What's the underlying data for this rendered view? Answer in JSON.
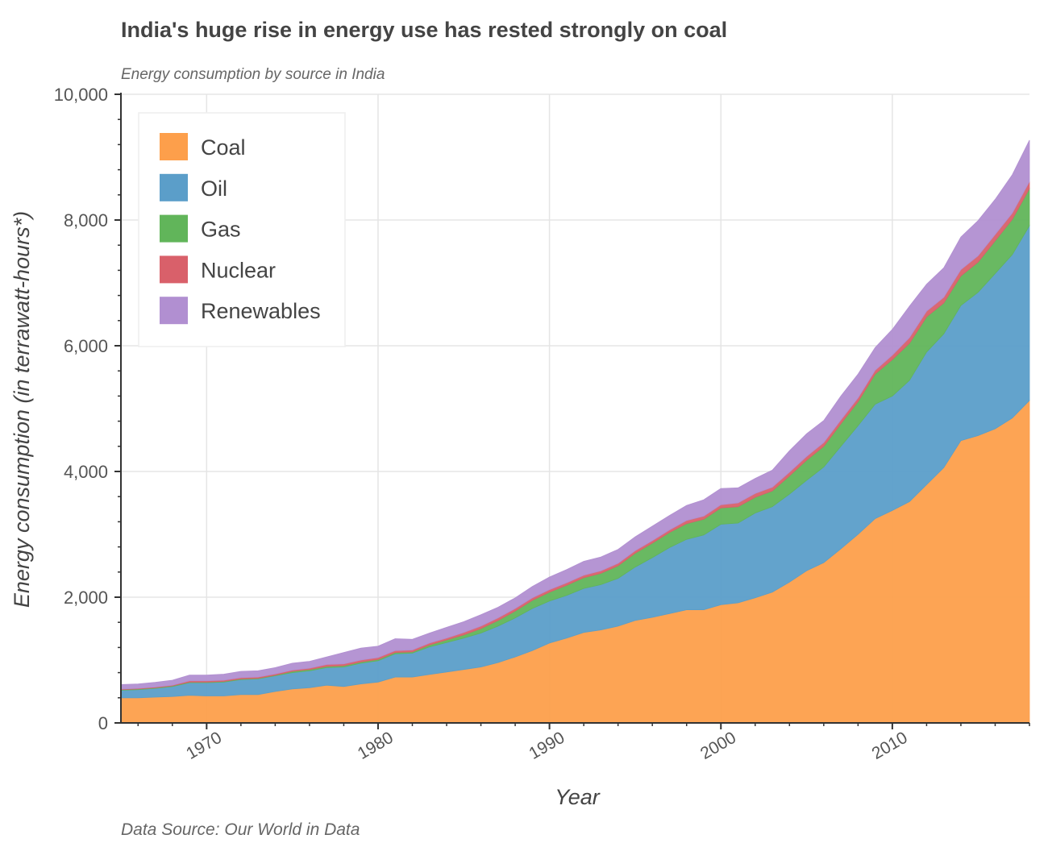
{
  "chart_data": {
    "type": "area",
    "stacked": true,
    "title": "India's huge rise in energy use has rested strongly on coal",
    "subtitle": "Energy consumption by source in India",
    "xlabel": "Year",
    "ylabel": "Energy consumption (in terrawatt-hours*)",
    "source": "Data Source: Our World in Data",
    "xlim": [
      1965,
      2018
    ],
    "ylim": [
      0,
      10000
    ],
    "x_ticks": [
      1970,
      1980,
      1990,
      2000,
      2010
    ],
    "y_ticks": [
      {
        "value": 0,
        "label": "0"
      },
      {
        "value": 2000,
        "label": "2,000"
      },
      {
        "value": 4000,
        "label": "4,000"
      },
      {
        "value": 6000,
        "label": "6,000"
      },
      {
        "value": 8000,
        "label": "8,000"
      },
      {
        "value": 10000,
        "label": "10,000"
      }
    ],
    "grid": true,
    "legend_position": "top-left",
    "x": [
      1965,
      1966,
      1967,
      1968,
      1969,
      1970,
      1971,
      1972,
      1973,
      1974,
      1975,
      1976,
      1977,
      1978,
      1979,
      1980,
      1981,
      1982,
      1983,
      1984,
      1985,
      1986,
      1987,
      1988,
      1989,
      1990,
      1991,
      1992,
      1993,
      1994,
      1995,
      1996,
      1997,
      1998,
      1999,
      2000,
      2001,
      2002,
      2003,
      2004,
      2005,
      2006,
      2007,
      2008,
      2009,
      2010,
      2011,
      2012,
      2013,
      2014,
      2015,
      2016,
      2017,
      2018
    ],
    "series": [
      {
        "name": "Coal",
        "color": "#fd9f4b",
        "values": [
          400,
          400,
          410,
          420,
          440,
          430,
          430,
          450,
          450,
          500,
          540,
          560,
          600,
          580,
          620,
          650,
          730,
          730,
          770,
          810,
          850,
          890,
          960,
          1050,
          1150,
          1270,
          1350,
          1440,
          1480,
          1540,
          1630,
          1680,
          1740,
          1800,
          1800,
          1880,
          1910,
          1990,
          2080,
          2240,
          2420,
          2550,
          2770,
          3000,
          3250,
          3380,
          3520,
          3790,
          4060,
          4490,
          4570,
          4680,
          4850,
          5130
        ]
      },
      {
        "name": "Oil",
        "color": "#5b9ec9",
        "values": [
          120,
          130,
          140,
          160,
          200,
          210,
          220,
          240,
          250,
          250,
          260,
          270,
          280,
          310,
          330,
          340,
          370,
          380,
          440,
          470,
          500,
          540,
          580,
          620,
          670,
          670,
          680,
          700,
          720,
          760,
          850,
          950,
          1050,
          1120,
          1190,
          1280,
          1270,
          1350,
          1360,
          1400,
          1440,
          1520,
          1630,
          1730,
          1820,
          1820,
          1930,
          2110,
          2130,
          2150,
          2280,
          2470,
          2600,
          2780
        ]
      },
      {
        "name": "Gas",
        "color": "#61b55a",
        "values": [
          10,
          10,
          10,
          10,
          10,
          10,
          10,
          10,
          10,
          10,
          20,
          20,
          20,
          20,
          20,
          20,
          20,
          20,
          30,
          40,
          50,
          70,
          90,
          110,
          130,
          140,
          160,
          170,
          180,
          200,
          220,
          230,
          240,
          250,
          250,
          260,
          260,
          250,
          250,
          290,
          320,
          330,
          360,
          380,
          480,
          580,
          590,
          560,
          490,
          470,
          480,
          520,
          560,
          590
        ]
      },
      {
        "name": "Nuclear",
        "color": "#d9606a",
        "values": [
          10,
          10,
          10,
          10,
          20,
          20,
          20,
          20,
          20,
          20,
          20,
          20,
          30,
          30,
          30,
          30,
          30,
          30,
          30,
          30,
          40,
          40,
          40,
          40,
          40,
          40,
          40,
          40,
          40,
          40,
          40,
          40,
          40,
          50,
          50,
          50,
          60,
          60,
          60,
          60,
          60,
          60,
          60,
          60,
          60,
          70,
          90,
          90,
          90,
          100,
          100,
          100,
          100,
          110
        ]
      },
      {
        "name": "Renewables",
        "color": "#b18fd1",
        "values": [
          70,
          70,
          75,
          80,
          90,
          90,
          95,
          100,
          100,
          100,
          110,
          110,
          120,
          180,
          190,
          180,
          190,
          170,
          160,
          170,
          170,
          180,
          170,
          170,
          180,
          200,
          210,
          220,
          220,
          220,
          220,
          230,
          230,
          240,
          260,
          260,
          240,
          240,
          270,
          340,
          360,
          350,
          380,
          380,
          360,
          410,
          500,
          430,
          470,
          520,
          560,
          560,
          610,
          660
        ]
      }
    ]
  }
}
